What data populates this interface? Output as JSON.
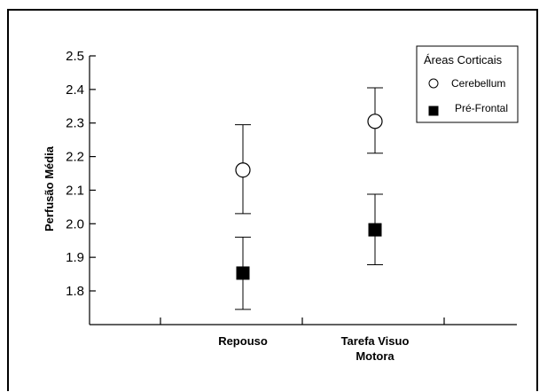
{
  "chart_data": {
    "type": "scatter",
    "ylabel": "Perfusão Média",
    "xlabel": "",
    "ylim": [
      1.7,
      2.5
    ],
    "yticks": [
      "1.8",
      "1.9",
      "2.0",
      "2.1",
      "2.2",
      "2.3",
      "2.4",
      "2.5"
    ],
    "categories": [
      {
        "line1": "Repouso",
        "line2": ""
      },
      {
        "line1": "Tarefa Visuo",
        "line2": "Motora"
      }
    ],
    "legend": {
      "title": "Áreas Corticais",
      "position": "top-right"
    },
    "series": [
      {
        "name": "Cerebellum",
        "marker": "open-circle",
        "values": [
          2.16,
          2.305
        ],
        "err_low": [
          2.03,
          2.21
        ],
        "err_high": [
          2.295,
          2.405
        ]
      },
      {
        "name": "Pré-Frontal",
        "marker": "filled-square",
        "values": [
          1.853,
          1.982
        ],
        "err_low": [
          1.745,
          1.878
        ],
        "err_high": [
          1.96,
          2.088
        ]
      }
    ],
    "colors": {
      "axis": "#000000",
      "marker_fill": "#000000",
      "open_fill": "#ffffff"
    }
  }
}
